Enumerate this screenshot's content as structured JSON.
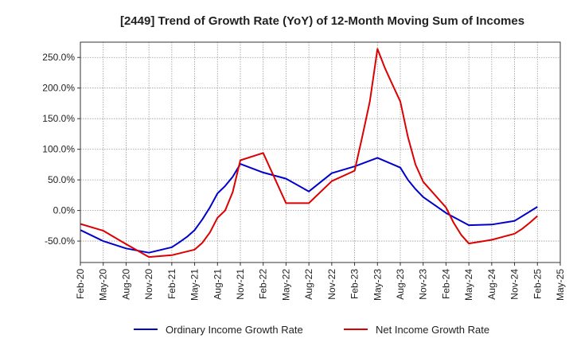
{
  "chart_data": {
    "type": "line",
    "title": "[2449]  Trend of Growth Rate (YoY) of 12-Month Moving Sum of Incomes",
    "xlabel": "",
    "ylabel": "",
    "ylim": [
      -85,
      275
    ],
    "yticks": [
      -50,
      0,
      50,
      100,
      150,
      200,
      250
    ],
    "ytick_labels": [
      "-50.0%",
      "0.0%",
      "50.0%",
      "100.0%",
      "150.0%",
      "200.0%",
      "250.0%"
    ],
    "x_tick_labels": [
      "Feb-20",
      "May-20",
      "Aug-20",
      "Nov-20",
      "Feb-21",
      "May-21",
      "Aug-21",
      "Nov-21",
      "Feb-22",
      "May-22",
      "Aug-22",
      "Nov-22",
      "Feb-23",
      "May-23",
      "Aug-23",
      "Nov-23",
      "Feb-24",
      "May-24",
      "Aug-24",
      "Nov-24",
      "Feb-25",
      "May-25"
    ],
    "x_start": "Feb-20",
    "grid": true,
    "legend": "bottom",
    "series": [
      {
        "name": "Ordinary Income Growth Rate",
        "color": "#0000cc",
        "x": [
          "Feb-20",
          "May-20",
          "Aug-20",
          "Nov-20",
          "Feb-21",
          "Mar-21",
          "Apr-21",
          "May-21",
          "Jun-21",
          "Jul-21",
          "Aug-21",
          "Sep-21",
          "Oct-21",
          "Nov-21",
          "Feb-22",
          "May-22",
          "Aug-22",
          "Nov-22",
          "Feb-23",
          "May-23",
          "Aug-23",
          "Sep-23",
          "Oct-23",
          "Nov-23",
          "Feb-24",
          "May-24",
          "Aug-24",
          "Nov-24",
          "Feb-25"
        ],
        "values": [
          -32,
          -50,
          -62,
          -69,
          -60,
          -52,
          -43,
          -32,
          -15,
          5,
          28,
          40,
          55,
          76,
          62,
          52,
          31,
          61,
          72,
          86,
          70,
          50,
          35,
          22,
          -4,
          -24,
          -23,
          -17,
          6
        ]
      },
      {
        "name": "Net Income Growth Rate",
        "color": "#dd0000",
        "x": [
          "Feb-20",
          "May-20",
          "Aug-20",
          "Nov-20",
          "Feb-21",
          "May-21",
          "Jun-21",
          "Jul-21",
          "Aug-21",
          "Sep-21",
          "Oct-21",
          "Nov-21",
          "Feb-22",
          "May-22",
          "Aug-22",
          "Nov-22",
          "Feb-23",
          "Mar-23",
          "Apr-23",
          "May-23",
          "Jun-23",
          "Jul-23",
          "Aug-23",
          "Sep-23",
          "Oct-23",
          "Nov-23",
          "Feb-24",
          "Mar-24",
          "Apr-24",
          "May-24",
          "Aug-24",
          "Nov-24",
          "Dec-24",
          "Jan-25",
          "Feb-25"
        ],
        "values": [
          -22,
          -33,
          -55,
          -76,
          -73,
          -64,
          -53,
          -36,
          -12,
          0,
          30,
          82,
          94,
          12,
          12,
          48,
          65,
          120,
          178,
          264,
          232,
          205,
          178,
          120,
          75,
          47,
          5,
          -20,
          -40,
          -54,
          -48,
          -38,
          -30,
          -20,
          -9
        ]
      }
    ]
  }
}
